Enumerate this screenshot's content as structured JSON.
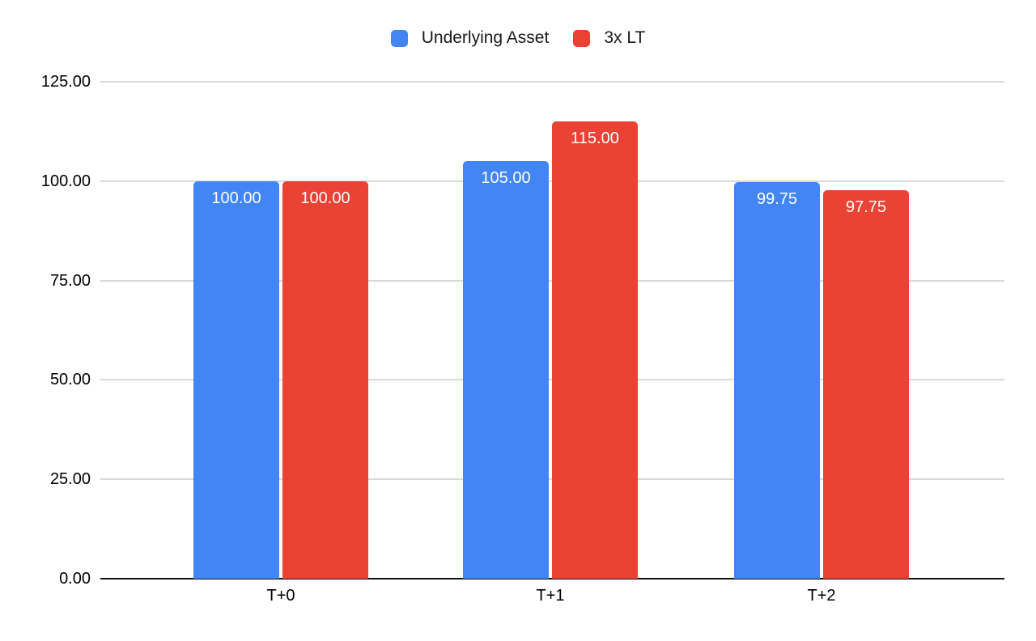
{
  "chart_data": {
    "type": "bar",
    "title": "",
    "xlabel": "",
    "ylabel": "",
    "categories": [
      "T+0",
      "T+1",
      "T+2"
    ],
    "series": [
      {
        "name": "Underlying Asset",
        "color": "#4285F4",
        "values": [
          100.0,
          105.0,
          99.75
        ],
        "value_labels": [
          "100.00",
          "105.00",
          "99.75"
        ]
      },
      {
        "name": "3x LT",
        "color": "#EA4335",
        "values": [
          100.0,
          115.0,
          97.75
        ],
        "value_labels": [
          "100.00",
          "115.00",
          "97.75"
        ]
      }
    ],
    "ylim": [
      0,
      125
    ],
    "yticks": [
      0,
      25,
      50,
      75,
      100,
      125
    ],
    "ytick_labels": [
      "0.00",
      "25.00",
      "50.00",
      "75.00",
      "100.00",
      "125.00"
    ],
    "grid": true,
    "legend_position": "top-center",
    "value_label_position": "inside-top",
    "colors": {
      "background": "#FFFFFF",
      "gridline": "#D9D9D9",
      "axis_line": "#111111",
      "tick_text": "#000000",
      "legend_text": "#1A1A1A",
      "bar_value_text": "#FFFFFF"
    }
  }
}
